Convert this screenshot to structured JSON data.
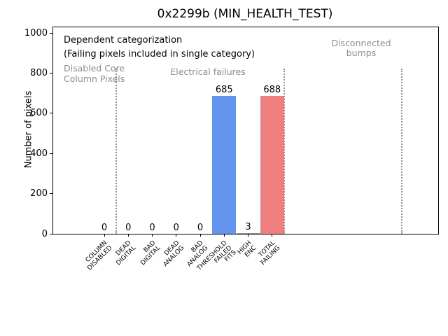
{
  "title": "0x2299b (MIN_HEALTH_TEST)",
  "ylabel": "Number of pixels",
  "annotations": {
    "categorization_title": "Dependent categorization",
    "categorization_note": "(Failing pixels included in single category)",
    "region_disabled": "Disabled Core\nColumn Pixels",
    "region_electrical": "Electrical failures",
    "region_disconnected": "Disconnected\nbumps"
  },
  "chart_data": {
    "type": "bar",
    "title": "0x2299b (MIN_HEALTH_TEST)",
    "ylabel": "Number of pixels",
    "xlabel": "",
    "ylim": [
      0,
      1030
    ],
    "yticks": [
      0,
      200,
      400,
      600,
      800,
      1000
    ],
    "grid": false,
    "legend": null,
    "categories": [
      "COLUMN\nDISABLED",
      "DEAD\nDIGITAL",
      "BAD\nDIGITAL",
      "DEAD\nANALOG",
      "BAD\nANALOG",
      "THRESHOLD\nFAILED\nFITS",
      "HIGH\nENC",
      "TOTAL\nFAILING"
    ],
    "values": [
      0,
      0,
      0,
      0,
      0,
      685,
      3,
      688
    ],
    "value_labels": [
      "0",
      "0",
      "0",
      "0",
      "0",
      "685",
      "3",
      "688"
    ],
    "bar_colors": [
      "#6495ED",
      "#6495ED",
      "#6495ED",
      "#6495ED",
      "#6495ED",
      "#6495ED",
      "#6495ED",
      "#F08080"
    ],
    "separator_lines": {
      "style": "dotted",
      "color": "#909090",
      "x_between_categories": [
        0.5,
        7.5,
        12.4
      ]
    },
    "region_labels": [
      "Disabled Core Column Pixels",
      "Electrical failures",
      "Disconnected bumps"
    ]
  },
  "colors": {
    "bar_blue": "#6495ED",
    "bar_red": "#F08080",
    "gray_annotation": "#8e8e8e",
    "separator_gray": "#909090",
    "axis_black": "#000000",
    "background": "#ffffff"
  }
}
